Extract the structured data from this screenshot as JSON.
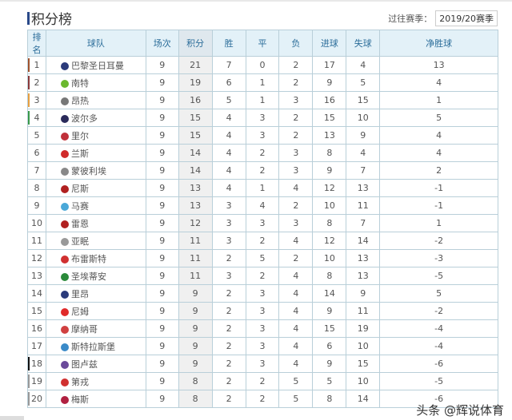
{
  "title": "积分榜",
  "season": {
    "label": "过往赛季：",
    "value": "2019/20赛季"
  },
  "headers": [
    "排名",
    "球队",
    "场次",
    "积分",
    "胜",
    "平",
    "负",
    "进球",
    "失球",
    "净胜球"
  ],
  "rows": [
    {
      "rank": "1",
      "team": "巴黎圣日耳曼",
      "played": "9",
      "pts": "21",
      "w": "7",
      "d": "0",
      "l": "2",
      "gf": "17",
      "ga": "4",
      "gd": "13",
      "mark": "#a0522d",
      "logo": "#2b3a7a"
    },
    {
      "rank": "2",
      "team": "南特",
      "played": "9",
      "pts": "19",
      "w": "6",
      "d": "1",
      "l": "2",
      "gf": "9",
      "ga": "5",
      "gd": "4",
      "mark": "#8b3a3a",
      "logo": "#6ab82e"
    },
    {
      "rank": "3",
      "team": "昂热",
      "played": "9",
      "pts": "16",
      "w": "5",
      "d": "1",
      "l": "3",
      "gf": "16",
      "ga": "15",
      "gd": "1",
      "mark": "#e8a040",
      "logo": "#777777"
    },
    {
      "rank": "4",
      "team": "波尔多",
      "played": "9",
      "pts": "15",
      "w": "4",
      "d": "3",
      "l": "2",
      "gf": "15",
      "ga": "10",
      "gd": "5",
      "mark": "#3a9a4a",
      "logo": "#2a2a5a"
    },
    {
      "rank": "5",
      "team": "里尔",
      "played": "9",
      "pts": "15",
      "w": "4",
      "d": "3",
      "l": "2",
      "gf": "13",
      "ga": "9",
      "gd": "4",
      "mark": "",
      "logo": "#c0303a"
    },
    {
      "rank": "6",
      "team": "兰斯",
      "played": "9",
      "pts": "14",
      "w": "4",
      "d": "2",
      "l": "3",
      "gf": "8",
      "ga": "4",
      "gd": "4",
      "mark": "",
      "logo": "#d02a2a"
    },
    {
      "rank": "7",
      "team": "蒙彼利埃",
      "played": "9",
      "pts": "14",
      "w": "4",
      "d": "2",
      "l": "3",
      "gf": "9",
      "ga": "7",
      "gd": "2",
      "mark": "",
      "logo": "#888888"
    },
    {
      "rank": "8",
      "team": "尼斯",
      "played": "9",
      "pts": "13",
      "w": "4",
      "d": "1",
      "l": "4",
      "gf": "12",
      "ga": "13",
      "gd": "-1",
      "mark": "",
      "logo": "#b02020"
    },
    {
      "rank": "9",
      "team": "马赛",
      "played": "9",
      "pts": "13",
      "w": "3",
      "d": "4",
      "l": "2",
      "gf": "10",
      "ga": "11",
      "gd": "-1",
      "mark": "",
      "logo": "#4aa8d8"
    },
    {
      "rank": "10",
      "team": "雷恩",
      "played": "9",
      "pts": "12",
      "w": "3",
      "d": "3",
      "l": "3",
      "gf": "8",
      "ga": "7",
      "gd": "1",
      "mark": "",
      "logo": "#b02020"
    },
    {
      "rank": "11",
      "team": "亚眠",
      "played": "9",
      "pts": "11",
      "w": "3",
      "d": "2",
      "l": "4",
      "gf": "12",
      "ga": "14",
      "gd": "-2",
      "mark": "",
      "logo": "#999999"
    },
    {
      "rank": "12",
      "team": "布雷斯特",
      "played": "9",
      "pts": "11",
      "w": "2",
      "d": "5",
      "l": "2",
      "gf": "10",
      "ga": "13",
      "gd": "-3",
      "mark": "",
      "logo": "#d03030"
    },
    {
      "rank": "13",
      "team": "圣埃蒂安",
      "played": "9",
      "pts": "11",
      "w": "3",
      "d": "2",
      "l": "4",
      "gf": "8",
      "ga": "13",
      "gd": "-5",
      "mark": "",
      "logo": "#2a8a3a"
    },
    {
      "rank": "14",
      "team": "里昂",
      "played": "9",
      "pts": "9",
      "w": "2",
      "d": "3",
      "l": "4",
      "gf": "14",
      "ga": "9",
      "gd": "5",
      "mark": "",
      "logo": "#2a3a7a"
    },
    {
      "rank": "15",
      "team": "尼姆",
      "played": "9",
      "pts": "9",
      "w": "2",
      "d": "3",
      "l": "4",
      "gf": "9",
      "ga": "11",
      "gd": "-2",
      "mark": "",
      "logo": "#e02a2a"
    },
    {
      "rank": "16",
      "team": "摩纳哥",
      "played": "9",
      "pts": "9",
      "w": "2",
      "d": "3",
      "l": "4",
      "gf": "15",
      "ga": "19",
      "gd": "-4",
      "mark": "",
      "logo": "#d04040"
    },
    {
      "rank": "17",
      "team": "斯特拉斯堡",
      "played": "9",
      "pts": "9",
      "w": "2",
      "d": "3",
      "l": "4",
      "gf": "6",
      "ga": "10",
      "gd": "-4",
      "mark": "",
      "logo": "#3a8ac8"
    },
    {
      "rank": "18",
      "team": "图卢兹",
      "played": "9",
      "pts": "9",
      "w": "2",
      "d": "3",
      "l": "4",
      "gf": "9",
      "ga": "15",
      "gd": "-6",
      "mark": "#111111",
      "logo": "#6a4a9a"
    },
    {
      "rank": "19",
      "team": "第戎",
      "played": "9",
      "pts": "8",
      "w": "2",
      "d": "2",
      "l": "5",
      "gf": "5",
      "ga": "10",
      "gd": "-5",
      "mark": "#999999",
      "logo": "#d03030"
    },
    {
      "rank": "20",
      "team": "梅斯",
      "played": "9",
      "pts": "8",
      "w": "2",
      "d": "2",
      "l": "5",
      "gf": "8",
      "ga": "14",
      "gd": "-6",
      "mark": "#999999",
      "logo": "#b02040"
    }
  ],
  "watermark": "头条 @辉说体育"
}
